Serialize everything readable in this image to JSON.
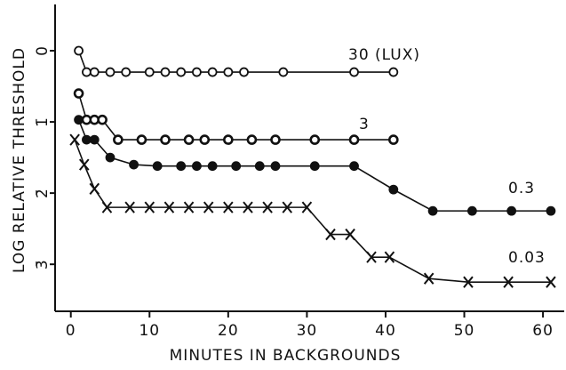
{
  "chart_data": {
    "type": "line",
    "x_label": "MINUTES IN BACKGROUNDS",
    "y_label": "LOG RELATIVE THRESHOLD",
    "xlim": [
      -2,
      62.7
    ],
    "ylim": [
      -3.66,
      0.65
    ],
    "xticks": [
      0,
      10,
      20,
      30,
      40,
      50,
      60
    ],
    "yticks": [
      0,
      {
        "value": -1,
        "label": "1̄"
      },
      {
        "value": -2,
        "label": "2̄"
      },
      {
        "value": -3,
        "label": "3̄"
      }
    ],
    "series": [
      {
        "name": "30 (LUX)",
        "color": "#111111",
        "marker": "open",
        "x": [
          1,
          2,
          3,
          5,
          7,
          10,
          12,
          14,
          16,
          18,
          20,
          22,
          27,
          36,
          41
        ],
        "values": [
          0,
          -0.3,
          -0.3,
          -0.3,
          -0.3,
          -0.3,
          -0.3,
          -0.3,
          -0.3,
          -0.3,
          -0.3,
          -0.3,
          -0.3,
          -0.3,
          -0.3
        ]
      },
      {
        "name": "3",
        "color": "#111111",
        "marker": "half",
        "x": [
          1,
          2,
          3,
          4,
          6,
          9,
          12,
          15,
          17,
          20,
          23,
          26,
          31,
          36,
          41
        ],
        "values": [
          -0.6,
          -0.97,
          -0.97,
          -0.97,
          -1.25,
          -1.25,
          -1.25,
          -1.25,
          -1.25,
          -1.25,
          -1.25,
          -1.25,
          -1.25,
          -1.25,
          -1.25
        ]
      },
      {
        "name": "0.3",
        "color": "#111111",
        "marker": "filled",
        "x": [
          1,
          2,
          3,
          5,
          8,
          11,
          14,
          16,
          18,
          21,
          24,
          26,
          31,
          36,
          41,
          46,
          51,
          56,
          61
        ],
        "values": [
          -0.97,
          -1.25,
          -1.25,
          -1.5,
          -1.6,
          -1.62,
          -1.62,
          -1.62,
          -1.62,
          -1.62,
          -1.62,
          -1.62,
          -1.62,
          -1.62,
          -1.95,
          -2.25,
          -2.25,
          -2.25,
          -2.25
        ]
      },
      {
        "name": "0.03",
        "color": "#111111",
        "marker": "x",
        "x": [
          0.5,
          1.7,
          3,
          4.6,
          7.5,
          10,
          12.5,
          15,
          17.5,
          20,
          22.5,
          25,
          27.5,
          30,
          33,
          35.5,
          38.2,
          40.5,
          45.5,
          50.5,
          55.6,
          61
        ],
        "values": [
          -1.25,
          -1.6,
          -1.94,
          -2.2,
          -2.2,
          -2.2,
          -2.2,
          -2.2,
          -2.2,
          -2.2,
          -2.2,
          -2.2,
          -2.2,
          -2.2,
          -2.58,
          -2.58,
          -2.9,
          -2.9,
          -3.2,
          -3.25,
          -3.25,
          -3.25
        ]
      }
    ]
  }
}
